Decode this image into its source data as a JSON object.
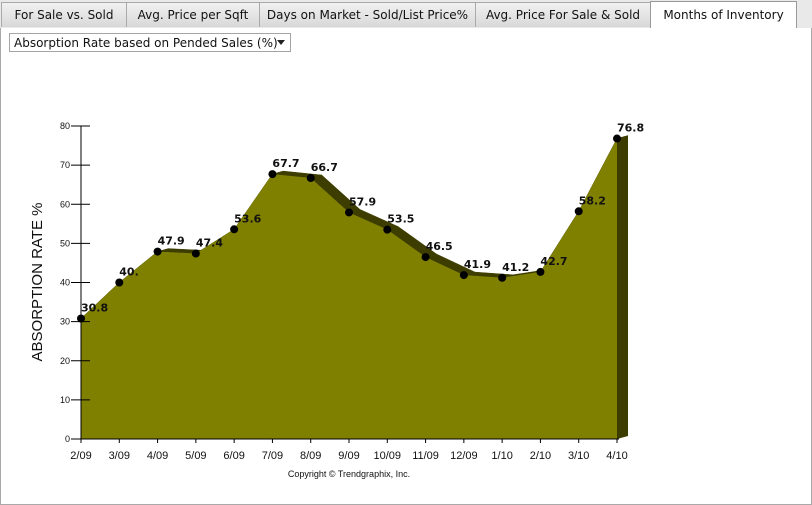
{
  "tabs": [
    {
      "label": "For Sale vs. Sold",
      "active": false
    },
    {
      "label": "Avg. Price per Sqft",
      "active": false
    },
    {
      "label": "Days on Market - Sold/List Price%",
      "active": false
    },
    {
      "label": "Avg. Price For Sale & Sold",
      "active": false
    },
    {
      "label": "Months of Inventory",
      "active": true
    }
  ],
  "selector": {
    "value": "Absorption Rate based on Pended Sales (%)"
  },
  "chart_data": {
    "type": "area",
    "title": "",
    "ylabel": "ABSORPTION RATE %",
    "xlabel": "",
    "categories": [
      "2/09",
      "3/09",
      "4/09",
      "5/09",
      "6/09",
      "7/09",
      "8/09",
      "9/09",
      "10/09",
      "11/09",
      "12/09",
      "1/10",
      "2/10",
      "3/10",
      "4/10"
    ],
    "values": [
      30.8,
      40,
      47.9,
      47.4,
      53.6,
      67.7,
      66.7,
      57.9,
      53.5,
      46.5,
      41.9,
      41.2,
      42.7,
      58.2,
      76.8
    ],
    "value_labels": [
      "30.8",
      "40.",
      "47.9",
      "47.4",
      "53.6",
      "67.7",
      "66.7",
      "57.9",
      "53.5",
      "46.5",
      "41.9",
      "41.2",
      "42.7",
      "58.2",
      "76.8"
    ],
    "ylim": [
      0,
      80
    ],
    "yticks": [
      "0",
      "10",
      "20",
      "30",
      "40",
      "50",
      "60",
      "70",
      "80"
    ],
    "fill_color": "#808000",
    "depth_color": "#3d3d00",
    "grid": false,
    "legend": "none"
  },
  "footer": {
    "copyright": "Copyright © Trendgraphix, Inc."
  }
}
